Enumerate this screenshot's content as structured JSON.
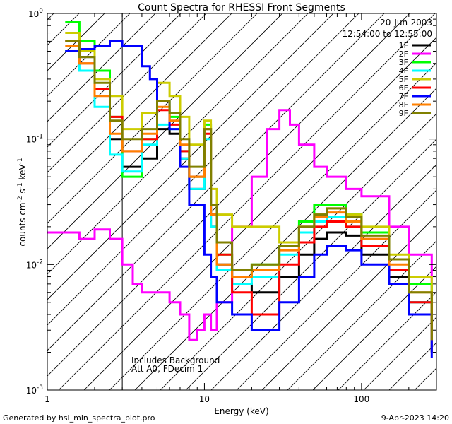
{
  "chart_data": {
    "type": "line",
    "title": "Count Spectra for RHESSI Front Segments",
    "xlabel": "Energy (keV)",
    "ylabel_main": "counts cm",
    "ylabel_sup1": "-2",
    "ylabel_mid": " s",
    "ylabel_sup2": "-1",
    "ylabel_end": " keV",
    "ylabel_sup3": "-1",
    "xscale": "log",
    "yscale": "log",
    "xlim": [
      1,
      300
    ],
    "ylim": [
      0.001,
      1
    ],
    "x_ticks": [
      {
        "value": 1,
        "label": "1"
      },
      {
        "value": 10,
        "label": "10"
      },
      {
        "value": 100,
        "label": "100"
      }
    ],
    "y_ticks": [
      {
        "value": 1,
        "base": "10",
        "exp": "0"
      },
      {
        "value": 0.1,
        "base": "10",
        "exp": "-1"
      },
      {
        "value": 0.01,
        "base": "10",
        "exp": "-2"
      },
      {
        "value": 0.001,
        "base": "10",
        "exp": "-3"
      }
    ],
    "date": "20-Jun-2003",
    "time_range": "12:54:00 to 12:55:00",
    "annotations": [
      "Includes Background",
      "Att A0, FDecim 1"
    ],
    "hatch_region": {
      "x_from": 1,
      "x_to": 3
    },
    "series": [
      {
        "name": "1F",
        "color": "#000000",
        "x": [
          1.3,
          1.6,
          2,
          2.5,
          3,
          4,
          5,
          6,
          7,
          8,
          10,
          11,
          12,
          15,
          20,
          30,
          40,
          50,
          60,
          80,
          100,
          150,
          200,
          280
        ],
        "values": [
          0.5,
          0.45,
          0.25,
          0.1,
          0.06,
          0.07,
          0.12,
          0.11,
          0.07,
          0.04,
          0.12,
          0.02,
          0.01,
          0.007,
          0.006,
          0.008,
          0.012,
          0.016,
          0.018,
          0.017,
          0.012,
          0.008,
          0.005,
          0.002
        ]
      },
      {
        "name": "2F",
        "color": "#ff00ff",
        "x": [
          1,
          1.3,
          1.6,
          2,
          2.5,
          3,
          3.5,
          4,
          5,
          6,
          7,
          8,
          9,
          10,
          11,
          12,
          15,
          20,
          25,
          30,
          35,
          40,
          50,
          60,
          80,
          100,
          150,
          200,
          280
        ],
        "values": [
          0.018,
          0.018,
          0.016,
          0.019,
          0.016,
          0.01,
          0.007,
          0.006,
          0.006,
          0.005,
          0.004,
          0.0025,
          0.003,
          0.004,
          0.003,
          0.005,
          0.02,
          0.05,
          0.12,
          0.17,
          0.13,
          0.09,
          0.06,
          0.05,
          0.04,
          0.035,
          0.02,
          0.012,
          0.006
        ]
      },
      {
        "name": "3F",
        "color": "#00ff00",
        "x": [
          1.3,
          1.6,
          2,
          2.5,
          3,
          4,
          5,
          6,
          7,
          8,
          10,
          11,
          12,
          15,
          20,
          30,
          40,
          50,
          60,
          80,
          100,
          150,
          200,
          280
        ],
        "values": [
          0.85,
          0.6,
          0.35,
          0.15,
          0.05,
          0.1,
          0.2,
          0.15,
          0.08,
          0.05,
          0.13,
          0.03,
          0.012,
          0.008,
          0.01,
          0.014,
          0.022,
          0.03,
          0.03,
          0.025,
          0.018,
          0.011,
          0.007,
          0.003
        ]
      },
      {
        "name": "4F",
        "color": "#00ffff",
        "x": [
          1.3,
          1.6,
          2,
          2.5,
          3,
          4,
          5,
          6,
          7,
          8,
          10,
          11,
          12,
          15,
          20,
          30,
          40,
          50,
          60,
          80,
          100,
          150,
          200,
          280
        ],
        "values": [
          0.5,
          0.35,
          0.18,
          0.075,
          0.055,
          0.09,
          0.13,
          0.12,
          0.07,
          0.04,
          0.1,
          0.02,
          0.009,
          0.007,
          0.008,
          0.012,
          0.018,
          0.022,
          0.024,
          0.02,
          0.014,
          0.009,
          0.005,
          0.002
        ]
      },
      {
        "name": "5F",
        "color": "#cccc00",
        "x": [
          1.3,
          1.6,
          2,
          2.5,
          3,
          4,
          5,
          6,
          7,
          8,
          10,
          11,
          12,
          15,
          20,
          30,
          40,
          50,
          60,
          80,
          100,
          150,
          200,
          280
        ],
        "values": [
          0.7,
          0.5,
          0.3,
          0.22,
          0.12,
          0.16,
          0.28,
          0.22,
          0.15,
          0.09,
          0.14,
          0.04,
          0.025,
          0.02,
          0.02,
          0.015,
          0.02,
          0.025,
          0.028,
          0.025,
          0.02,
          0.012,
          0.008,
          0.003
        ]
      },
      {
        "name": "6F",
        "color": "#ff0000",
        "x": [
          1.3,
          1.6,
          2,
          2.5,
          3,
          4,
          5,
          6,
          7,
          8,
          10,
          11,
          12,
          15,
          20,
          30,
          40,
          50,
          60,
          80,
          100,
          150,
          200,
          280
        ],
        "values": [
          0.6,
          0.4,
          0.25,
          0.15,
          0.08,
          0.1,
          0.17,
          0.13,
          0.08,
          0.05,
          0.11,
          0.025,
          0.012,
          0.006,
          0.004,
          0.01,
          0.015,
          0.02,
          0.022,
          0.02,
          0.014,
          0.009,
          0.005,
          0.002
        ]
      },
      {
        "name": "7F",
        "color": "#0000ff",
        "x": [
          1.3,
          1.6,
          2,
          2.5,
          3,
          4,
          4.5,
          5,
          6,
          7,
          8,
          10,
          11,
          12,
          15,
          20,
          30,
          40,
          50,
          60,
          80,
          100,
          150,
          200,
          280
        ],
        "values": [
          0.5,
          0.52,
          0.55,
          0.6,
          0.55,
          0.38,
          0.3,
          0.2,
          0.12,
          0.06,
          0.03,
          0.012,
          0.008,
          0.005,
          0.004,
          0.003,
          0.005,
          0.008,
          0.012,
          0.014,
          0.013,
          0.01,
          0.007,
          0.004,
          0.0018
        ]
      },
      {
        "name": "8F",
        "color": "#ff8000",
        "x": [
          1.3,
          1.6,
          2,
          2.5,
          3,
          4,
          5,
          6,
          7,
          8,
          10,
          11,
          12,
          15,
          20,
          30,
          40,
          50,
          60,
          80,
          100,
          150,
          200,
          280
        ],
        "values": [
          0.55,
          0.4,
          0.22,
          0.11,
          0.08,
          0.11,
          0.18,
          0.14,
          0.09,
          0.05,
          0.12,
          0.025,
          0.01,
          0.008,
          0.009,
          0.013,
          0.02,
          0.024,
          0.026,
          0.022,
          0.016,
          0.01,
          0.006,
          0.0025
        ]
      },
      {
        "name": "9F",
        "color": "#808000",
        "x": [
          1.3,
          1.6,
          2,
          2.5,
          3,
          4,
          5,
          6,
          7,
          8,
          10,
          11,
          12,
          15,
          20,
          30,
          40,
          50,
          60,
          80,
          100,
          150,
          200,
          280
        ],
        "values": [
          0.6,
          0.45,
          0.28,
          0.14,
          0.1,
          0.12,
          0.2,
          0.16,
          0.1,
          0.06,
          0.12,
          0.03,
          0.015,
          0.009,
          0.01,
          0.014,
          0.02,
          0.025,
          0.028,
          0.024,
          0.017,
          0.011,
          0.006,
          0.0025
        ]
      }
    ]
  },
  "footer": {
    "left": "Generated by hsi_min_spectra_plot.pro",
    "right": "9-Apr-2023 14:20"
  }
}
